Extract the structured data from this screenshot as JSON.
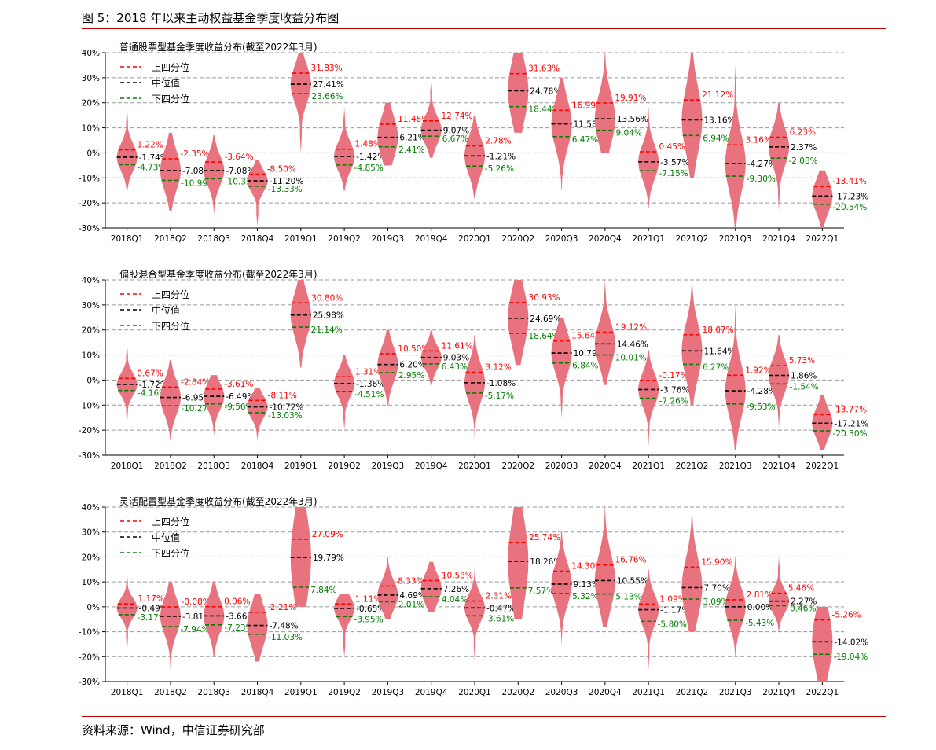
{
  "page": {
    "figure_title": "图 5：2018 年以来主动权益基金季度收益分布图",
    "source": "资料来源：Wind，中信证券研究部"
  },
  "colors": {
    "violin": "#e8737f",
    "upper": "#ff0000",
    "median": "#000000",
    "lower": "#008000",
    "grid": "#999999"
  },
  "chart_data": [
    {
      "type": "violin",
      "title": "普通股票型基金季度收益分布(截至2022年3月)",
      "categories": [
        "2018Q1",
        "2018Q2",
        "2018Q3",
        "2018Q4",
        "2019Q1",
        "2019Q2",
        "2019Q3",
        "2019Q4",
        "2020Q1",
        "2020Q2",
        "2020Q3",
        "2020Q4",
        "2021Q1",
        "2021Q2",
        "2021Q3",
        "2021Q4",
        "2022Q1"
      ],
      "ylim": [
        -30,
        40
      ],
      "yticks": [
        "-30%",
        "-20%",
        "-10%",
        "0%",
        "10%",
        "20%",
        "30%",
        "40%"
      ],
      "grid": true,
      "legend": {
        "position": "top-left",
        "entries": [
          "上四分位",
          "中位值",
          "下四分位"
        ]
      },
      "series": [
        {
          "name": "上四分位",
          "values": [
            1.22,
            -2.35,
            -3.64,
            -8.5,
            31.83,
            1.48,
            11.46,
            12.74,
            2.78,
            31.63,
            16.99,
            19.91,
            0.45,
            21.12,
            3.16,
            6.23,
            -13.41
          ],
          "labels": [
            "1.22%",
            "-2.35%",
            "-3.64%",
            "-8.50%",
            "31.83%",
            "1.48%",
            "11.46%",
            "12.74%",
            "2.78%",
            "31.63%",
            "16.99%",
            "19.91%",
            "0.45%",
            "21.12%",
            "3.16%",
            "6.23%",
            "-13.41%"
          ]
        },
        {
          "name": "中位值",
          "values": [
            -1.74,
            -7.08,
            -7.08,
            -11.2,
            27.41,
            -1.42,
            6.21,
            9.07,
            -1.21,
            24.78,
            11.58,
            13.56,
            -3.57,
            13.16,
            -4.27,
            2.37,
            -17.23
          ],
          "labels": [
            "-1.74%",
            "-7.08%",
            "-7.08%",
            "-11.20%",
            "27.41%",
            "-1.42%",
            "6.21%",
            "9.07%",
            "-1.21%",
            "24.78%",
            "11.58%",
            "13.56%",
            "-3.57%",
            "13.16%",
            "-4.27%",
            "2.37%",
            "-17.23%"
          ]
        },
        {
          "name": "下四分位",
          "values": [
            -4.73,
            -10.99,
            -10.31,
            -13.33,
            23.66,
            -4.85,
            2.41,
            6.67,
            -5.26,
            18.44,
            6.47,
            9.04,
            -7.15,
            6.94,
            -9.3,
            -2.08,
            -20.54
          ],
          "labels": [
            "-4.73%",
            "-10.99%",
            "-10.31%",
            "-13.33%",
            "23.66%",
            "-4.85%",
            "2.41%",
            "6.67%",
            "-5.26%",
            "18.44%",
            "6.47%",
            "9.04%",
            "-7.15%",
            "6.94%",
            "-9.30%",
            "-2.08%",
            "-20.54%"
          ]
        }
      ],
      "violin_range": {
        "min": [
          -15,
          -23,
          -24,
          -29,
          0,
          -15,
          -5,
          -2,
          -18,
          8,
          -15,
          0,
          -22,
          -10,
          -30,
          -23,
          -30
        ],
        "max": [
          18,
          8,
          7,
          -3,
          40,
          18,
          20,
          30,
          15,
          40,
          30,
          40,
          18,
          40,
          35,
          20,
          -7
        ]
      }
    },
    {
      "type": "violin",
      "title": "偏股混合型基金季度收益分布(截至2022年3月)",
      "categories": [
        "2018Q1",
        "2018Q2",
        "2018Q3",
        "2018Q4",
        "2019Q1",
        "2019Q2",
        "2019Q3",
        "2019Q4",
        "2020Q1",
        "2020Q2",
        "2020Q3",
        "2020Q4",
        "2021Q1",
        "2021Q2",
        "2021Q3",
        "2021Q4",
        "2022Q1"
      ],
      "ylim": [
        -30,
        40
      ],
      "yticks": [
        "-30%",
        "-20%",
        "-10%",
        "0%",
        "10%",
        "20%",
        "30%",
        "40%"
      ],
      "grid": true,
      "legend": {
        "position": "top-left",
        "entries": [
          "上四分位",
          "中位值",
          "下四分位"
        ]
      },
      "series": [
        {
          "name": "上四分位",
          "values": [
            0.67,
            -2.84,
            -3.61,
            -8.11,
            30.8,
            1.31,
            10.5,
            11.61,
            3.12,
            30.93,
            15.64,
            19.12,
            -0.17,
            18.07,
            1.92,
            5.73,
            -13.77
          ],
          "labels": [
            "0.67%",
            "-2.84%",
            "-3.61%",
            "-8.11%",
            "30.80%",
            "1.31%",
            "10.50%",
            "11.61%",
            "3.12%",
            "30.93%",
            "15.64%",
            "19.12%",
            "-0.17%",
            "18.07%",
            "1.92%",
            "5.73%",
            "-13.77%"
          ]
        },
        {
          "name": "中位值",
          "values": [
            -1.72,
            -6.95,
            -6.49,
            -10.72,
            25.98,
            -1.36,
            6.2,
            9.03,
            -1.08,
            24.69,
            10.79,
            14.46,
            -3.76,
            11.64,
            -4.28,
            1.86,
            -17.21
          ],
          "labels": [
            "-1.72%",
            "-6.95%",
            "-6.49%",
            "-10.72%",
            "25.98%",
            "-1.36%",
            "6.20%",
            "9.03%",
            "-1.08%",
            "24.69%",
            "10.79%",
            "14.46%",
            "-3.76%",
            "11.64%",
            "-4.28%",
            "1.86%",
            "-17.21%"
          ]
        },
        {
          "name": "下四分位",
          "values": [
            -4.16,
            -10.27,
            -9.56,
            -13.03,
            21.14,
            -4.51,
            2.95,
            6.43,
            -5.17,
            18.64,
            6.84,
            10.01,
            -7.26,
            6.27,
            -9.53,
            -1.54,
            -20.3
          ],
          "labels": [
            "-4.16%",
            "-10.27%",
            "-9.56%",
            "-13.03%",
            "21.14%",
            "-4.51%",
            "2.95%",
            "6.43%",
            "-5.17%",
            "18.64%",
            "6.84%",
            "10.01%",
            "-7.26%",
            "6.27%",
            "-9.53%",
            "-1.54%",
            "-20.30%"
          ]
        }
      ],
      "violin_range": {
        "min": [
          -18,
          -24,
          -22,
          -24,
          5,
          -20,
          -10,
          -2,
          -23,
          6,
          -15,
          -2,
          -26,
          -10,
          -28,
          -19,
          -28
        ],
        "max": [
          15,
          8,
          2,
          -3,
          40,
          10,
          20,
          20,
          18,
          40,
          25,
          40,
          12,
          40,
          30,
          18,
          -6
        ]
      }
    },
    {
      "type": "violin",
      "title": "灵活配置型基金季度收益分布(截至2022年3月)",
      "categories": [
        "2018Q1",
        "2018Q2",
        "2018Q3",
        "2018Q4",
        "2019Q1",
        "2019Q2",
        "2019Q3",
        "2019Q4",
        "2020Q1",
        "2020Q2",
        "2020Q3",
        "2020Q4",
        "2021Q1",
        "2021Q2",
        "2021Q3",
        "2021Q4",
        "2022Q1"
      ],
      "ylim": [
        -30,
        40
      ],
      "yticks": [
        "-30%",
        "-20%",
        "-10%",
        "0%",
        "10%",
        "20%",
        "30%",
        "40%"
      ],
      "grid": true,
      "legend": {
        "position": "top-left",
        "entries": [
          "上四分位",
          "中位值",
          "下四分位"
        ]
      },
      "series": [
        {
          "name": "上四分位",
          "values": [
            1.17,
            -0.08,
            0.06,
            -2.21,
            27.09,
            1.11,
            8.33,
            10.53,
            2.31,
            25.74,
            14.3,
            16.76,
            1.09,
            15.9,
            2.81,
            5.46,
            -5.26
          ],
          "labels": [
            "1.17%",
            "-0.08%",
            "0.06%",
            "-2.21%",
            "27.09%",
            "1.11%",
            "8.33%",
            "10.53%",
            "2.31%",
            "25.74%",
            "14.30%",
            "16.76%",
            "1.09%",
            "15.90%",
            "2.81%",
            "5.46%",
            "-5.26%"
          ]
        },
        {
          "name": "中位值",
          "values": [
            -0.49,
            -3.81,
            -3.66,
            -7.48,
            19.79,
            -0.65,
            4.69,
            7.26,
            -0.47,
            18.26,
            9.13,
            10.55,
            -1.17,
            7.7,
            0.0,
            2.27,
            -14.02
          ],
          "labels": [
            "-0.49%",
            "-3.81%",
            "-3.66%",
            "-7.48%",
            "19.79%",
            "-0.65%",
            "4.69%",
            "7.26%",
            "-0.47%",
            "18.26%",
            "9.13%",
            "10.55%",
            "-1.17%",
            "7.70%",
            "0.00%",
            "2.27%",
            "-14.02%"
          ]
        },
        {
          "name": "下四分位",
          "values": [
            -3.17,
            -7.94,
            -7.23,
            -11.03,
            7.84,
            -3.95,
            2.01,
            4.04,
            -3.61,
            7.57,
            5.32,
            5.13,
            -5.8,
            3.09,
            -5.43,
            0.46,
            -19.04
          ],
          "labels": [
            "-3.17%",
            "-7.94%",
            "-7.23%",
            "-11.03%",
            "7.84%",
            "-3.95%",
            "2.01%",
            "4.04%",
            "-3.61%",
            "7.57%",
            "5.32%",
            "5.13%",
            "-5.80%",
            "3.09%",
            "-5.43%",
            "0.46%",
            "-19.04%"
          ]
        }
      ],
      "violin_range": {
        "min": [
          -18,
          -25,
          -20,
          -22,
          0,
          -20,
          -5,
          -2,
          -22,
          -5,
          -15,
          -8,
          -25,
          -10,
          -20,
          -10,
          -30
        ],
        "max": [
          14,
          10,
          10,
          5,
          40,
          5,
          20,
          18,
          15,
          40,
          30,
          40,
          15,
          40,
          20,
          20,
          0
        ]
      }
    }
  ]
}
